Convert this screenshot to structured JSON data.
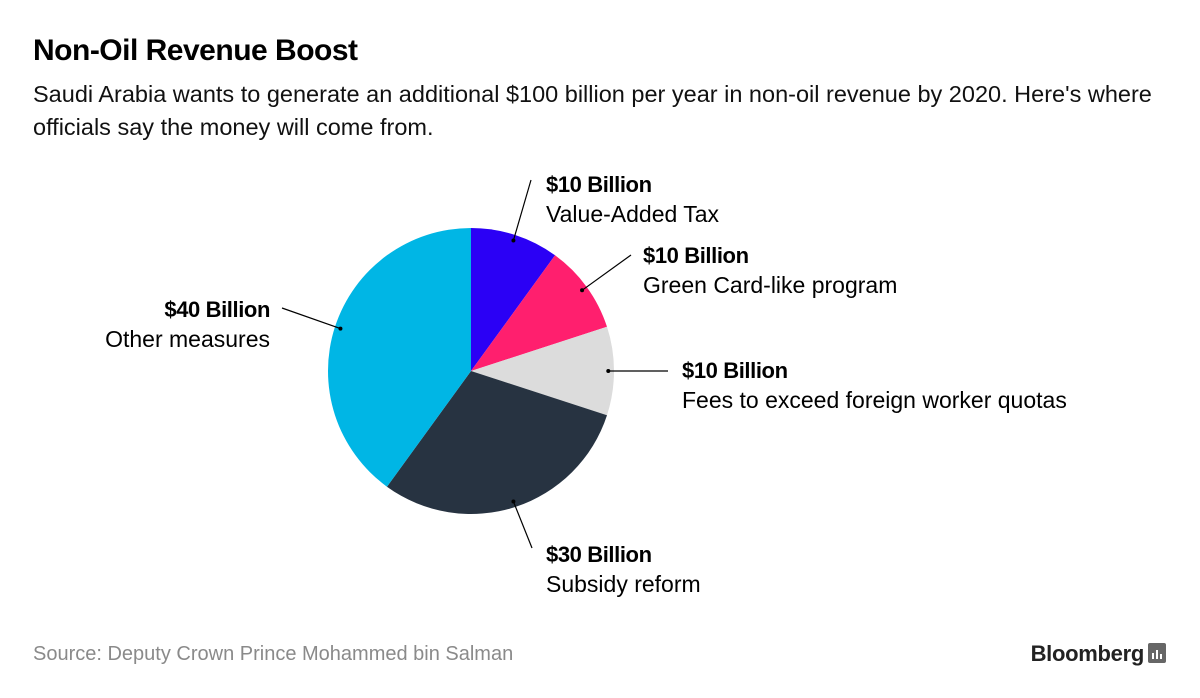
{
  "title": "Non-Oil Revenue Boost",
  "subtitle": "Saudi Arabia wants to generate an additional $100 billion per year in non-oil revenue by 2020. Here's where officials say the money will come from.",
  "source": "Source: Deputy Crown Prince Mohammed bin Salman",
  "brand": "Bloomberg",
  "brand_icon": "bloomberg-terminal-icon",
  "chart_data": {
    "type": "pie",
    "title": "Non-Oil Revenue Boost",
    "unit": "billion USD",
    "total": 100,
    "start": "12 o'clock",
    "direction": "clockwise",
    "slices": [
      {
        "name": "Value-Added Tax",
        "value": 10,
        "label": "$10 Billion",
        "color": "#2b00f5"
      },
      {
        "name": "Green Card-like program",
        "value": 10,
        "label": "$10 Billion",
        "color": "#ff1f6e"
      },
      {
        "name": "Fees to exceed foreign worker quotas",
        "value": 10,
        "label": "$10 Billion",
        "color": "#dcdcdc"
      },
      {
        "name": "Subsidy reform",
        "value": 30,
        "label": "$30 Billion",
        "color": "#273341"
      },
      {
        "name": "Other measures",
        "value": 40,
        "label": "$40 Billion",
        "color": "#00b6e5"
      }
    ]
  }
}
